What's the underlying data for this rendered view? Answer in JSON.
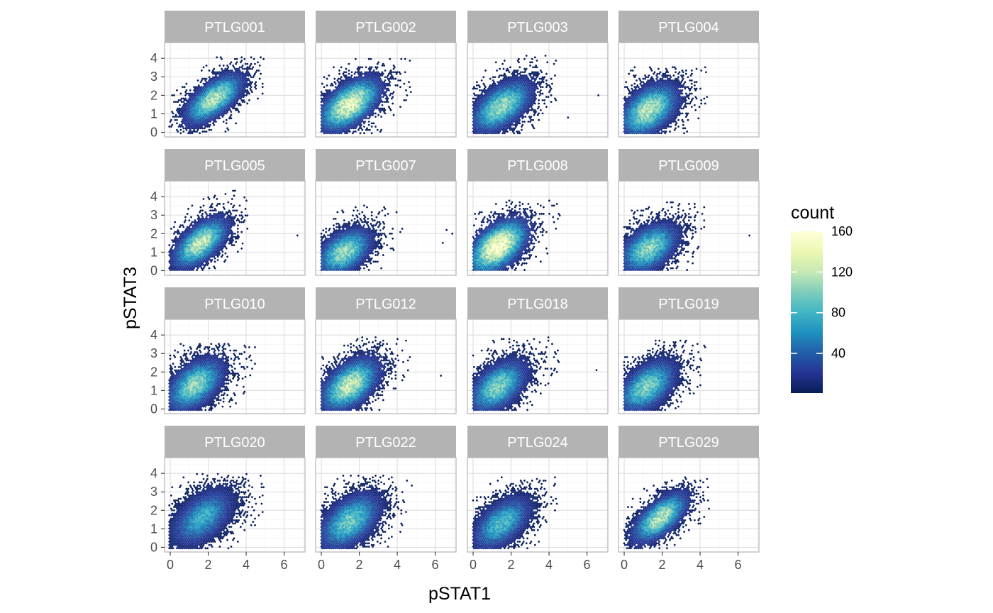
{
  "chart_data": {
    "type": "heatmap",
    "subtype": "faceted hexbin density",
    "xlabel": "pSTAT1",
    "ylabel": "pSTAT3",
    "x_ticks": [
      "0",
      "2",
      "4",
      "6"
    ],
    "y_ticks": [
      "0",
      "1",
      "2",
      "3",
      "4"
    ],
    "xlim": [
      -0.3,
      7.1
    ],
    "ylim": [
      -0.25,
      4.85
    ],
    "legend": {
      "title": "count",
      "position": "right",
      "breaks": [
        "40",
        "80",
        "120",
        "160"
      ],
      "range": [
        1,
        160
      ],
      "colors": [
        "#081d58",
        "#253494",
        "#225ea8",
        "#1d91c0",
        "#41b6c4",
        "#7fcdbb",
        "#c7e9b4",
        "#edf8b1",
        "#ffffd9"
      ]
    },
    "grid": true,
    "facets": [
      {
        "label": "PTLG001",
        "center": [
          2.3,
          1.8
        ],
        "spread": [
          0.85,
          0.75
        ],
        "corr": 0.65,
        "peak": 120,
        "extent_x": [
          0,
          5.0
        ],
        "extent_y": [
          0,
          4.2
        ],
        "outliers": []
      },
      {
        "label": "PTLG002",
        "center": [
          1.5,
          1.5
        ],
        "spread": [
          0.9,
          0.8
        ],
        "corr": 0.55,
        "peak": 140,
        "extent_x": [
          0,
          4.8
        ],
        "extent_y": [
          0,
          4.0
        ],
        "outliers": []
      },
      {
        "label": "PTLG003",
        "center": [
          1.5,
          1.4
        ],
        "spread": [
          0.9,
          0.8
        ],
        "corr": 0.55,
        "peak": 110,
        "extent_x": [
          0,
          4.4
        ],
        "extent_y": [
          0,
          4.3
        ],
        "outliers": [
          [
            6.6,
            2.0
          ],
          [
            5.0,
            0.8
          ]
        ]
      },
      {
        "label": "PTLG004",
        "center": [
          1.3,
          1.2
        ],
        "spread": [
          0.85,
          0.8
        ],
        "corr": 0.45,
        "peak": 120,
        "extent_x": [
          0,
          4.4
        ],
        "extent_y": [
          0,
          3.6
        ],
        "outliers": []
      },
      {
        "label": "PTLG005",
        "center": [
          1.6,
          1.5
        ],
        "spread": [
          0.8,
          0.75
        ],
        "corr": 0.6,
        "peak": 125,
        "extent_x": [
          0,
          4.2
        ],
        "extent_y": [
          0,
          4.6
        ],
        "outliers": [
          [
            6.7,
            1.9
          ]
        ]
      },
      {
        "label": "PTLG007",
        "center": [
          1.2,
          1.0
        ],
        "spread": [
          0.8,
          0.7
        ],
        "corr": 0.45,
        "peak": 110,
        "extent_x": [
          0,
          4.3
        ],
        "extent_y": [
          0,
          3.6
        ],
        "outliers": [
          [
            6.6,
            2.2
          ],
          [
            6.4,
            1.5
          ],
          [
            6.9,
            2.0
          ]
        ]
      },
      {
        "label": "PTLG008",
        "center": [
          1.3,
          1.3
        ],
        "spread": [
          0.85,
          0.8
        ],
        "corr": 0.5,
        "peak": 160,
        "extent_x": [
          0,
          4.7
        ],
        "extent_y": [
          0,
          3.8
        ],
        "outliers": []
      },
      {
        "label": "PTLG009",
        "center": [
          1.3,
          1.2
        ],
        "spread": [
          0.85,
          0.75
        ],
        "corr": 0.45,
        "peak": 105,
        "extent_x": [
          0,
          4.3
        ],
        "extent_y": [
          0,
          3.7
        ],
        "outliers": [
          [
            6.6,
            1.9
          ]
        ]
      },
      {
        "label": "PTLG010",
        "center": [
          1.3,
          1.3
        ],
        "spread": [
          0.85,
          0.8
        ],
        "corr": 0.5,
        "peak": 105,
        "extent_x": [
          0,
          4.6
        ],
        "extent_y": [
          0,
          3.6
        ],
        "outliers": []
      },
      {
        "label": "PTLG012",
        "center": [
          1.5,
          1.3
        ],
        "spread": [
          0.85,
          0.8
        ],
        "corr": 0.5,
        "peak": 125,
        "extent_x": [
          0,
          4.8
        ],
        "extent_y": [
          0,
          3.9
        ],
        "outliers": [
          [
            6.3,
            1.8
          ]
        ]
      },
      {
        "label": "PTLG018",
        "center": [
          1.3,
          1.2
        ],
        "spread": [
          0.85,
          0.8
        ],
        "corr": 0.5,
        "peak": 100,
        "extent_x": [
          0,
          4.8
        ],
        "extent_y": [
          0,
          3.9
        ],
        "outliers": [
          [
            6.5,
            2.1
          ]
        ]
      },
      {
        "label": "PTLG019",
        "center": [
          1.2,
          1.2
        ],
        "spread": [
          0.85,
          0.8
        ],
        "corr": 0.5,
        "peak": 100,
        "extent_x": [
          0,
          4.7
        ],
        "extent_y": [
          0,
          3.7
        ],
        "outliers": []
      },
      {
        "label": "PTLG020",
        "center": [
          1.7,
          1.6
        ],
        "spread": [
          0.9,
          0.85
        ],
        "corr": 0.5,
        "peak": 75,
        "extent_x": [
          0,
          5.0
        ],
        "extent_y": [
          0,
          4.0
        ],
        "outliers": []
      },
      {
        "label": "PTLG022",
        "center": [
          1.5,
          1.4
        ],
        "spread": [
          0.9,
          0.85
        ],
        "corr": 0.5,
        "peak": 95,
        "extent_x": [
          0,
          4.8
        ],
        "extent_y": [
          0,
          3.9
        ],
        "outliers": []
      },
      {
        "label": "PTLG024",
        "center": [
          1.5,
          1.3
        ],
        "spread": [
          0.85,
          0.8
        ],
        "corr": 0.55,
        "peak": 85,
        "extent_x": [
          0,
          4.6
        ],
        "extent_y": [
          0,
          3.8
        ],
        "outliers": []
      },
      {
        "label": "PTLG029",
        "center": [
          1.9,
          1.6
        ],
        "spread": [
          0.8,
          0.75
        ],
        "corr": 0.65,
        "peak": 120,
        "extent_x": [
          0,
          4.5
        ],
        "extent_y": [
          0,
          3.8
        ],
        "outliers": []
      }
    ]
  }
}
